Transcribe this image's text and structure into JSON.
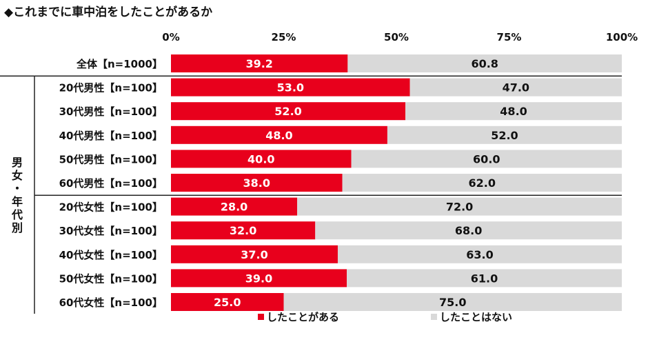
{
  "chart_data": {
    "type": "bar",
    "orientation": "horizontal",
    "stacked": true,
    "title": "◆これまでに車中泊をしたことがあるか",
    "categories": [
      "全体【n=1000】",
      "20代男性【n=100】",
      "30代男性【n=100】",
      "40代男性【n=100】",
      "50代男性【n=100】",
      "60代男性【n=100】",
      "20代女性【n=100】",
      "30代女性【n=100】",
      "40代女性【n=100】",
      "50代女性【n=100】",
      "60代女性【n=100】"
    ],
    "series": [
      {
        "name": "したことがある",
        "color": "#e8001c",
        "values": [
          39.2,
          53.0,
          52.0,
          48.0,
          40.0,
          38.0,
          28.0,
          32.0,
          37.0,
          39.0,
          25.0
        ]
      },
      {
        "name": "したことはない",
        "color": "#d9d9d9",
        "values": [
          60.8,
          47.0,
          48.0,
          52.0,
          60.0,
          62.0,
          72.0,
          68.0,
          63.0,
          61.0,
          75.0
        ]
      }
    ],
    "xlim": [
      0,
      100
    ],
    "xticks": [
      "0%",
      "25%",
      "50%",
      "75%",
      "100%"
    ],
    "group_label": "男女・年代別",
    "legend_position": "bottom"
  }
}
